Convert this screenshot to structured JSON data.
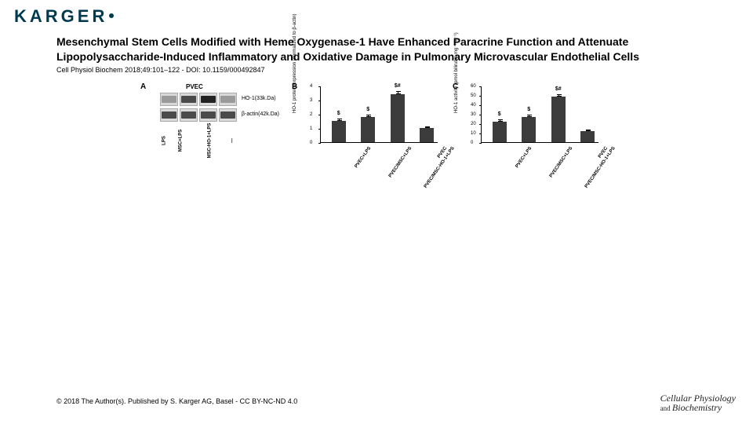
{
  "publisher": {
    "name": "KARGER",
    "color": "#003a4f"
  },
  "title": "Mesenchymal Stem Cells Modified with Heme Oxygenase-1 Have Enhanced Paracrine Function and Attenuate Lipopolysaccharide-Induced Inflammatory and Oxidative Damage in Pulmonary Microvascular Endothelial Cells",
  "citation": "Cell Physiol Biochem 2018;49:101–122  -  DOI: 10.1159/000492847",
  "copyright": "© 2018 The Author(s). Published by S. Karger AG, Basel  -  CC BY-NC-ND 4.0",
  "journal": {
    "line1": "Cellular Physiology",
    "line2_pre": "and ",
    "line2": "Biochemistry"
  },
  "figure": {
    "panelA": {
      "label": "A",
      "header": "PVEC",
      "lanes": [
        "LPS",
        "MSC+LPS",
        "MSC-HO-1+LPS",
        "—"
      ],
      "rows": [
        {
          "label": "HO-1(33k.Da)",
          "intensity": [
            "faint",
            "normal",
            "strong",
            "faint"
          ]
        },
        {
          "label": "β-actin(42k.Da)",
          "intensity": [
            "normal",
            "normal",
            "normal",
            "normal"
          ]
        }
      ]
    },
    "panelB": {
      "label": "B",
      "type": "bar",
      "ylabel": "HO-1 protein expression\n(normalized to β-actin)",
      "ylim": [
        0,
        4
      ],
      "yticks": [
        0,
        1,
        2,
        3,
        4
      ],
      "bar_color": "#3c3c3c",
      "categories": [
        "PVEC+LPS",
        "PVEC/MSC+LPS",
        "PVEC/MSC-HO-1+LPS",
        "PVEC"
      ],
      "values": [
        1.5,
        1.8,
        3.4,
        1.0
      ],
      "errors": [
        0.15,
        0.15,
        0.2,
        0.1
      ],
      "sig": [
        "$",
        "$",
        "$#",
        ""
      ]
    },
    "panelC": {
      "label": "C",
      "type": "bar",
      "ylabel": "HO-1 activity\n(pmol bilirubin mg⁻¹ hr⁻¹)",
      "ylim": [
        0,
        60
      ],
      "yticks": [
        0,
        10,
        20,
        30,
        40,
        50,
        60
      ],
      "bar_color": "#3c3c3c",
      "categories": [
        "PVEC+LPS",
        "PVEC/MSC+LPS",
        "PVEC/MSC-HO-1+LPS",
        "PVEC"
      ],
      "values": [
        22,
        27,
        48,
        12
      ],
      "errors": [
        2,
        2,
        3,
        1.5
      ],
      "sig": [
        "$",
        "$",
        "$#",
        ""
      ]
    }
  }
}
